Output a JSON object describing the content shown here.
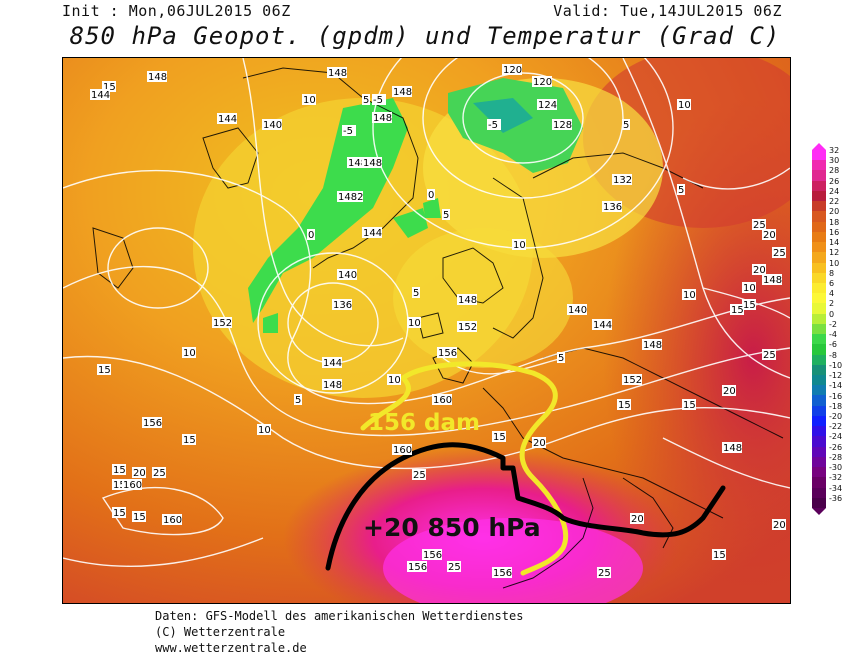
{
  "header": {
    "init": "Init : Mon,06JUL2015 06Z",
    "valid": "Valid: Tue,14JUL2015 06Z",
    "title": "850 hPa Geopot. (gpdm) und Temperatur (Grad C)"
  },
  "annotations": {
    "height_label": "156 dam",
    "temp_label": "+20 850 hPa"
  },
  "colors": {
    "height_line": "#f2e82a",
    "temp_line": "#000000",
    "contours": "#ffffff"
  },
  "colorbar": {
    "labels": [
      "32",
      "30",
      "28",
      "26",
      "24",
      "22",
      "20",
      "18",
      "16",
      "14",
      "12",
      "10",
      "8",
      "6",
      "4",
      "2",
      "0",
      "-2",
      "-4",
      "-6",
      "-8",
      "-10",
      "-12",
      "-14",
      "-16",
      "-18",
      "-20",
      "-22",
      "-24",
      "-26",
      "-28",
      "-30",
      "-32",
      "-34",
      "-36"
    ],
    "colors": [
      "#ff2cf5",
      "#f02ab0",
      "#e02890",
      "#cc2060",
      "#b81c3c",
      "#c83c28",
      "#d85820",
      "#e06818",
      "#e87c14",
      "#f09018",
      "#f4a81c",
      "#f8c020",
      "#fad828",
      "#fcec30",
      "#fcf838",
      "#e8f838",
      "#b8ee38",
      "#7ae040",
      "#3cd84a",
      "#28c83c",
      "#20b060",
      "#189078",
      "#108890",
      "#107cb0",
      "#1060d0",
      "#1040e8",
      "#1020ff",
      "#3010e8",
      "#4a0ad0",
      "#6006b8",
      "#70049c",
      "#780280",
      "#6a0066",
      "#5a005a",
      "#4a004a"
    ]
  },
  "contour_labels": [
    {
      "t": "15"
    },
    {
      "t": "144"
    },
    {
      "t": "148"
    },
    {
      "t": "144"
    },
    {
      "t": "140"
    },
    {
      "t": "10"
    },
    {
      "t": "5"
    },
    {
      "t": "148"
    },
    {
      "t": "-5"
    },
    {
      "t": "148"
    },
    {
      "t": "148"
    },
    {
      "t": "-5"
    },
    {
      "t": "148"
    },
    {
      "t": "148"
    },
    {
      "t": "1482"
    },
    {
      "t": "144"
    },
    {
      "t": "0"
    },
    {
      "t": "0"
    },
    {
      "t": "5"
    },
    {
      "t": "120"
    },
    {
      "t": "120"
    },
    {
      "t": "124"
    },
    {
      "t": "-5"
    },
    {
      "t": "128"
    },
    {
      "t": "10"
    },
    {
      "t": "5"
    },
    {
      "t": "132"
    },
    {
      "t": "136"
    },
    {
      "t": "5"
    },
    {
      "t": "10"
    },
    {
      "t": "152"
    },
    {
      "t": "140"
    },
    {
      "t": "136"
    },
    {
      "t": "5"
    },
    {
      "t": "10"
    },
    {
      "t": "148"
    },
    {
      "t": "152"
    },
    {
      "t": "156"
    },
    {
      "t": "5"
    },
    {
      "t": "144"
    },
    {
      "t": "148"
    },
    {
      "t": "5"
    },
    {
      "t": "10"
    },
    {
      "t": "140"
    },
    {
      "t": "144"
    },
    {
      "t": "148"
    },
    {
      "t": "152"
    },
    {
      "t": "10"
    },
    {
      "t": "15"
    },
    {
      "t": "160"
    },
    {
      "t": "156"
    },
    {
      "t": "10"
    },
    {
      "t": "15"
    },
    {
      "t": "160"
    },
    {
      "t": "15"
    },
    {
      "t": "20"
    },
    {
      "t": "25"
    },
    {
      "t": "15"
    },
    {
      "t": "20"
    },
    {
      "t": "15"
    },
    {
      "t": "25"
    },
    {
      "t": "15"
    },
    {
      "t": "160"
    },
    {
      "t": "15"
    },
    {
      "t": "160"
    },
    {
      "t": "156"
    },
    {
      "t": "156"
    },
    {
      "t": "25"
    },
    {
      "t": "156"
    },
    {
      "t": "25"
    },
    {
      "t": "20"
    },
    {
      "t": "148"
    },
    {
      "t": "20"
    },
    {
      "t": "25"
    },
    {
      "t": "15"
    },
    {
      "t": "15"
    },
    {
      "t": "10"
    },
    {
      "t": "10"
    },
    {
      "t": "15"
    },
    {
      "t": "15"
    },
    {
      "t": "20"
    },
    {
      "t": "148"
    },
    {
      "t": "25"
    },
    {
      "t": "15"
    },
    {
      "t": "20"
    },
    {
      "t": "25"
    },
    {
      "t": "20"
    }
  ],
  "footer": {
    "line1": "Daten: GFS-Modell des amerikanischen Wetterdienstes",
    "line2": "(C) Wetterzentrale",
    "line3": "www.wetterzentrale.de"
  }
}
